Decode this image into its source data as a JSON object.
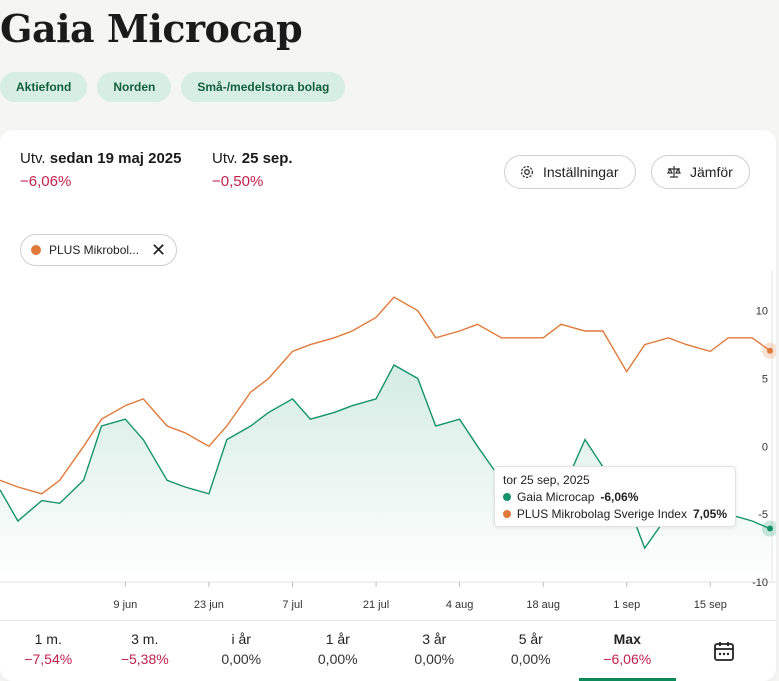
{
  "header": {
    "title": "Gaia Microcap",
    "tags": [
      "Aktiefond",
      "Norden",
      "Små-/medelstora bolag"
    ]
  },
  "stats": {
    "since_label_prefix": "Utv.",
    "since_label_date": "sedan 19 maj 2025",
    "since_value": "−6,06%",
    "day_label_prefix": "Utv.",
    "day_label_date": "25 sep.",
    "day_value": "−0,50%"
  },
  "buttons": {
    "settings": "Inställningar",
    "compare": "Jämför"
  },
  "compare_chip": {
    "label": "PLUS Mikrobol..."
  },
  "tooltip": {
    "date": "tor 25 sep, 2025",
    "rows": [
      {
        "name": "Gaia Microcap",
        "value": "-6,06%"
      },
      {
        "name": "PLUS Mikrobolag Sverige Index",
        "value": "7,05%"
      }
    ]
  },
  "periods": [
    {
      "label": "1 m.",
      "value": "−7,54%",
      "negative": true
    },
    {
      "label": "3 m.",
      "value": "−5,38%",
      "negative": true
    },
    {
      "label": "i år",
      "value": "0,00%",
      "negative": false
    },
    {
      "label": "1 år",
      "value": "0,00%",
      "negative": false
    },
    {
      "label": "3 år",
      "value": "0,00%",
      "negative": false
    },
    {
      "label": "5 år",
      "value": "0,00%",
      "negative": false
    },
    {
      "label": "Max",
      "value": "−6,06%",
      "negative": true,
      "active": true
    }
  ],
  "colors": {
    "fund": "#14936a",
    "index": "#e07a3b",
    "negative": "#c0224c",
    "accent": "#0d8a5a"
  },
  "chart_data": {
    "type": "line",
    "x": [
      "2025-05-19",
      "2025-05-22",
      "2025-05-26",
      "2025-05-29",
      "2025-06-02",
      "2025-06-05",
      "2025-06-09",
      "2025-06-12",
      "2025-06-16",
      "2025-06-19",
      "2025-06-23",
      "2025-06-26",
      "2025-06-30",
      "2025-07-03",
      "2025-07-07",
      "2025-07-10",
      "2025-07-14",
      "2025-07-17",
      "2025-07-21",
      "2025-07-24",
      "2025-07-28",
      "2025-07-31",
      "2025-08-04",
      "2025-08-07",
      "2025-08-11",
      "2025-08-14",
      "2025-08-18",
      "2025-08-21",
      "2025-08-25",
      "2025-08-28",
      "2025-09-01",
      "2025-09-04",
      "2025-09-08",
      "2025-09-11",
      "2025-09-15",
      "2025-09-18",
      "2025-09-22",
      "2025-09-25"
    ],
    "series": [
      {
        "name": "Gaia Microcap",
        "values": [
          -3.2,
          -5.5,
          -4.0,
          -4.2,
          -2.5,
          1.5,
          2.0,
          0.5,
          -2.5,
          -3.0,
          -3.5,
          0.5,
          1.5,
          2.5,
          3.5,
          2.0,
          2.5,
          3.0,
          3.5,
          6.0,
          5.0,
          1.5,
          2.0,
          0.0,
          -2.5,
          -3.5,
          -3.0,
          -3.5,
          0.5,
          -1.5,
          -4.0,
          -7.5,
          -5.0,
          -4.5,
          -4.5,
          -5.0,
          -5.5,
          -6.06
        ]
      },
      {
        "name": "PLUS Mikrobolag Sverige Index",
        "values": [
          -2.5,
          -3.0,
          -3.5,
          -2.5,
          0.0,
          2.0,
          3.0,
          3.5,
          1.5,
          1.0,
          0.0,
          1.5,
          4.0,
          5.0,
          7.0,
          7.5,
          8.0,
          8.5,
          9.5,
          11.0,
          10.0,
          8.0,
          8.5,
          9.0,
          8.0,
          8.0,
          8.0,
          9.0,
          8.5,
          8.5,
          5.5,
          7.5,
          8.0,
          7.5,
          7.0,
          8.0,
          8.0,
          7.05
        ]
      }
    ],
    "x_ticks": [
      "9 jun",
      "23 jun",
      "7 jul",
      "21 jul",
      "4 aug",
      "18 aug",
      "1 sep",
      "15 sep"
    ],
    "y_ticks": [
      "10",
      "5",
      "0",
      "-5",
      "-10"
    ],
    "ylim": [
      -10,
      13
    ],
    "grid": false,
    "legend": "tooltip"
  }
}
